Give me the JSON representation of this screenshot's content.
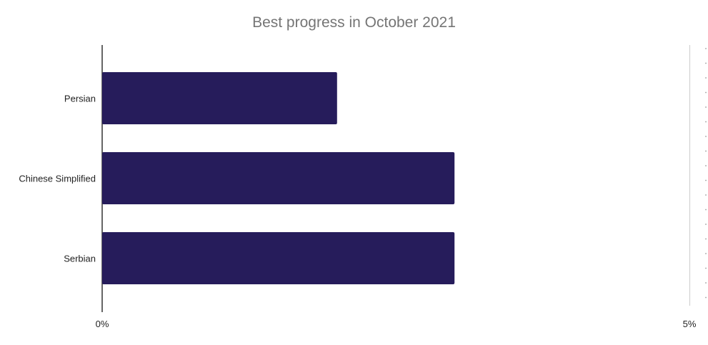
{
  "chart_data": {
    "type": "bar",
    "orientation": "horizontal",
    "title": "Best progress in October 2021",
    "xlabel": "",
    "ylabel": "",
    "categories": [
      "Persian",
      "Chinese Simplified",
      "Serbian"
    ],
    "values": [
      2.0,
      3.0,
      3.0
    ],
    "unit": "%",
    "xlim": [
      0,
      5
    ],
    "x_ticks": [
      "0%",
      "5%"
    ],
    "bar_color": "#261c5b",
    "grid": false,
    "legend": "none"
  }
}
